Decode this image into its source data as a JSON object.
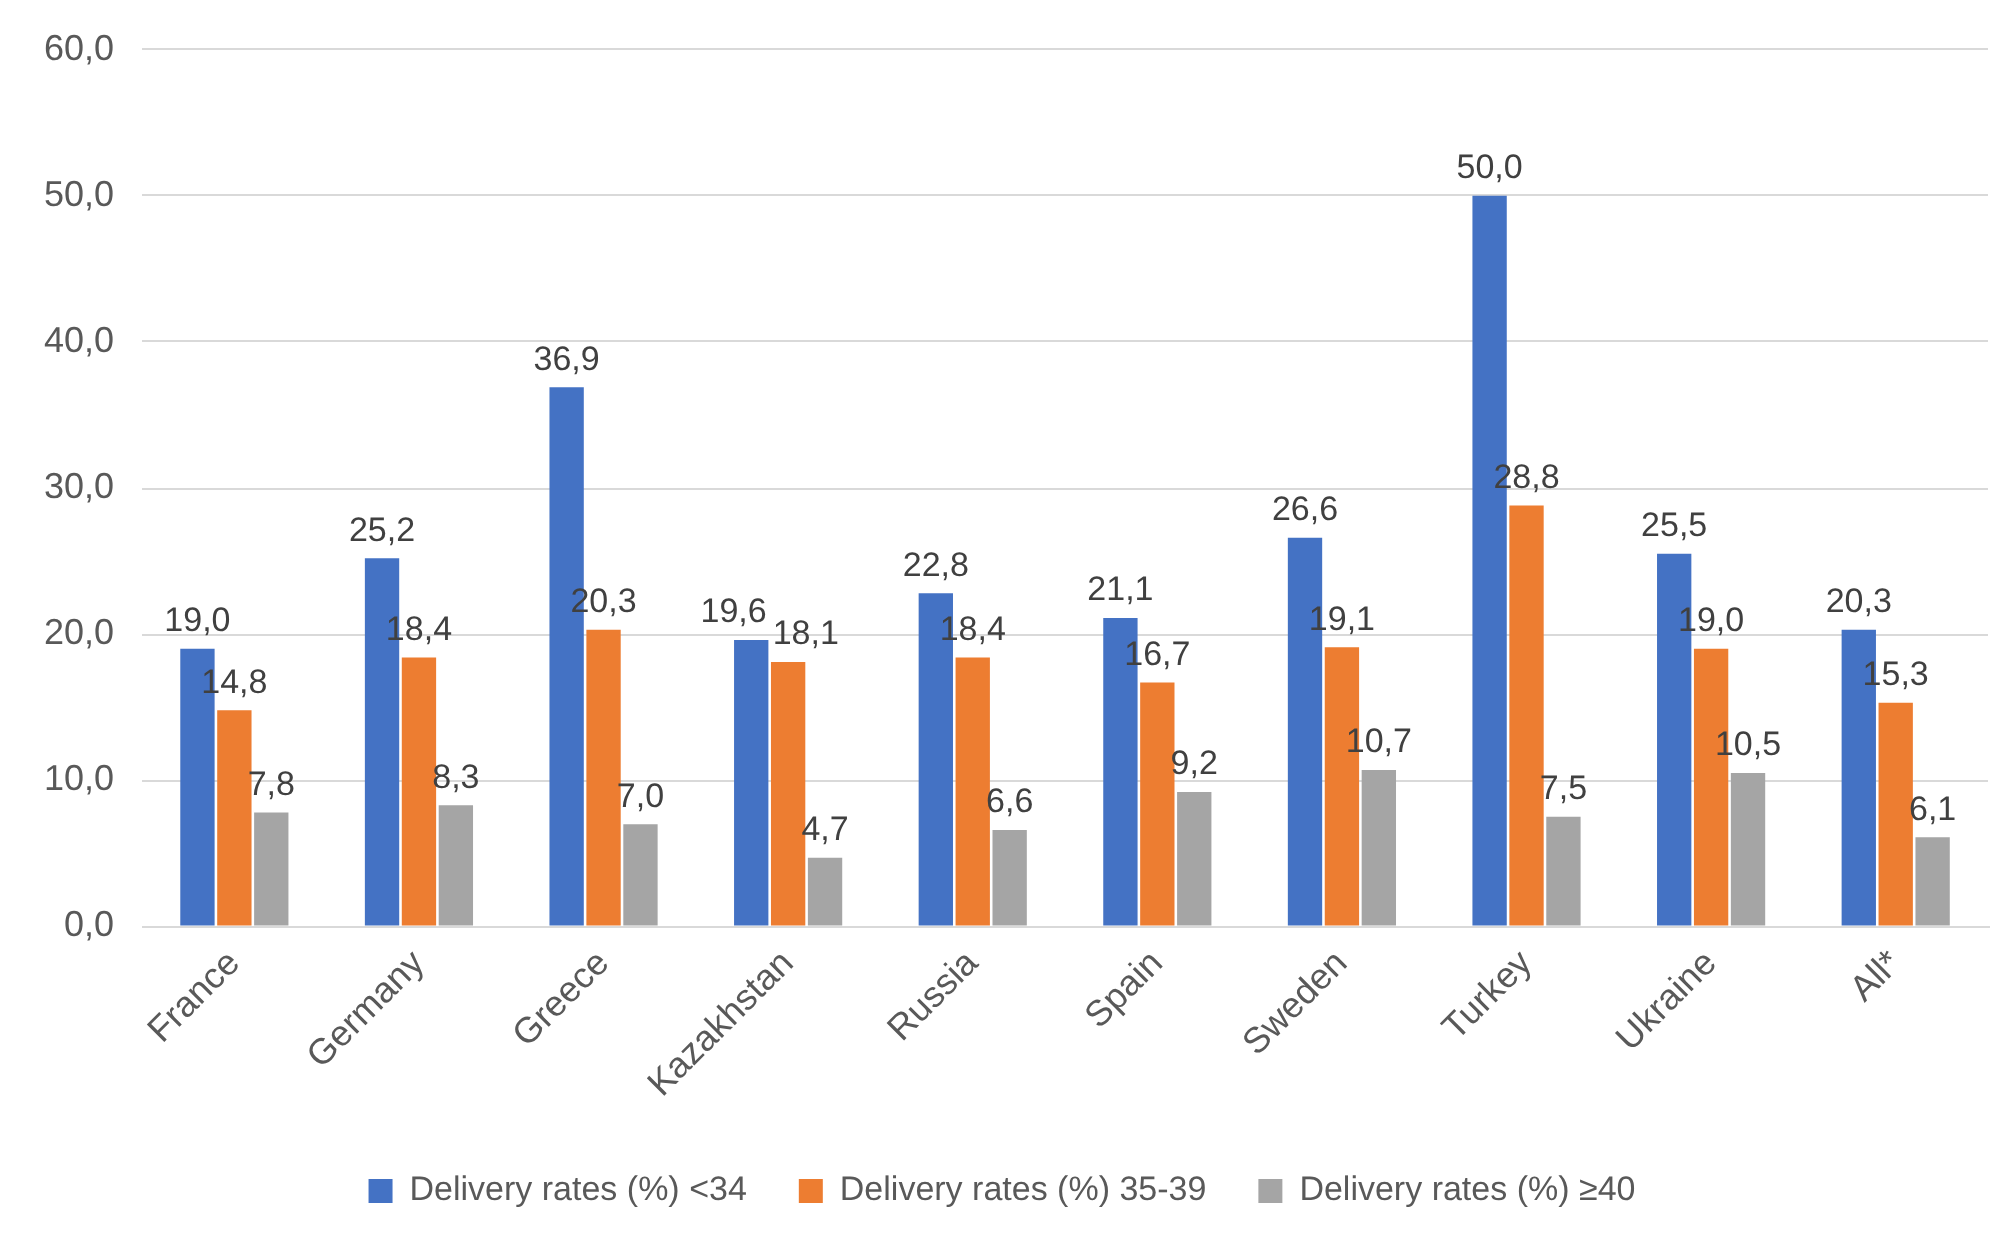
{
  "chart_data": {
    "type": "bar",
    "categories": [
      "France",
      "Germany",
      "Greece",
      "Kazakhstan",
      "Russia",
      "Spain",
      "Sweden",
      "Turkey",
      "Ukraine",
      "All*"
    ],
    "series": [
      {
        "name": "Delivery rates (%) <34",
        "color": "#4472c4",
        "values": [
          19.0,
          25.2,
          36.9,
          19.6,
          22.8,
          21.1,
          26.6,
          50.0,
          25.5,
          20.3
        ],
        "value_labels": [
          "19,0",
          "25,2",
          "36,9",
          "19,6",
          "22,8",
          "21,1",
          "26,6",
          "50,0",
          "25,5",
          "20,3"
        ]
      },
      {
        "name": "Delivery rates (%) 35-39",
        "color": "#ed7d31",
        "values": [
          14.8,
          18.4,
          20.3,
          18.1,
          18.4,
          16.7,
          19.1,
          28.8,
          19.0,
          15.3
        ],
        "value_labels": [
          "14,8",
          "18,4",
          "20,3",
          "18,1",
          "18,4",
          "16,7",
          "19,1",
          "28,8",
          "19,0",
          "15,3"
        ]
      },
      {
        "name": "Delivery rates (%) ≥40",
        "color": "#a5a5a5",
        "values": [
          7.8,
          8.3,
          7.0,
          4.7,
          6.6,
          9.2,
          10.7,
          7.5,
          10.5,
          6.1
        ],
        "value_labels": [
          "7,8",
          "8,3",
          "7,0",
          "4,7",
          "6,6",
          "9,2",
          "10,7",
          "7,5",
          "10,5",
          "6,1"
        ]
      }
    ],
    "ylim": [
      0,
      60
    ],
    "yticks": [
      {
        "value": 0,
        "label": "0,0"
      },
      {
        "value": 10,
        "label": "10,0"
      },
      {
        "value": 20,
        "label": "20,0"
      },
      {
        "value": 30,
        "label": "30,0"
      },
      {
        "value": 40,
        "label": "40,0"
      },
      {
        "value": 50,
        "label": "50,0"
      },
      {
        "value": 60,
        "label": "60,0"
      }
    ],
    "grid": "y",
    "legend": "bottom"
  }
}
